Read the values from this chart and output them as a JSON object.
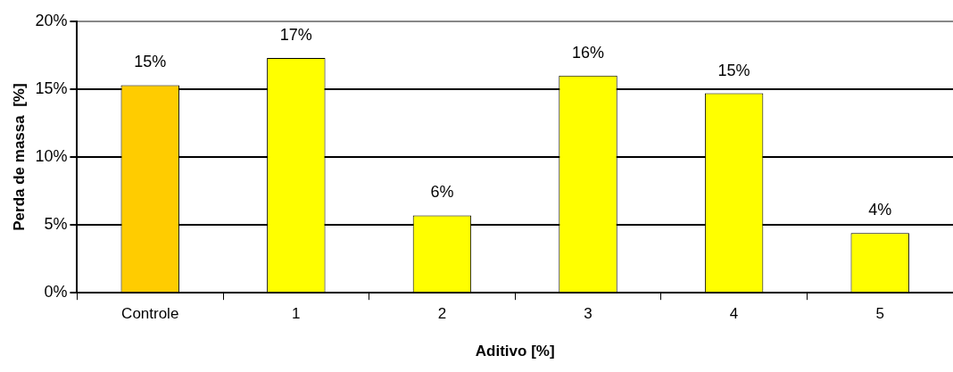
{
  "chart_data": {
    "type": "bar",
    "xlabel": "Aditivo [%]",
    "ylabel": "Perda de massa  [%]",
    "categories": [
      "Controle",
      "1",
      "2",
      "3",
      "4",
      "5"
    ],
    "values": [
      15.3,
      17.3,
      5.7,
      16.0,
      14.7,
      4.4
    ],
    "colors": [
      "#ffcc00",
      "#ffff00",
      "#ffff00",
      "#ffff00",
      "#ffff00",
      "#ffff00"
    ],
    "value_labels": [
      "15%",
      "17%",
      "6%",
      "16%",
      "15%",
      "4%"
    ],
    "ylim": [
      0,
      20
    ],
    "yticks": [
      {
        "value": 0,
        "label": "0%"
      },
      {
        "value": 5,
        "label": "5%"
      },
      {
        "value": 10,
        "label": "10%"
      },
      {
        "value": 15,
        "label": "15%"
      },
      {
        "value": 20,
        "label": "20%"
      }
    ],
    "grid": "y",
    "legend": false
  }
}
